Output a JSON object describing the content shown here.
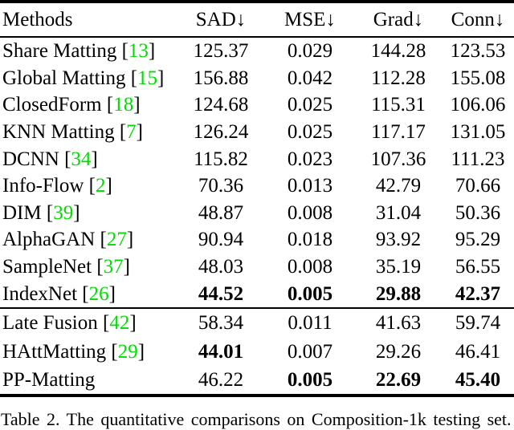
{
  "paper_table": {
    "headers": [
      "Methods",
      "SAD↓",
      "MSE↓",
      "Grad↓",
      "Conn↓"
    ],
    "groups": [
      {
        "rows": [
          {
            "method": "Share Matting",
            "cite": "13",
            "values": [
              "125.37",
              "0.029",
              "144.28",
              "123.53"
            ],
            "bold": [
              false,
              false,
              false,
              false
            ]
          },
          {
            "method": "Global Matting",
            "cite": "15",
            "values": [
              "156.88",
              "0.042",
              "112.28",
              "155.08"
            ],
            "bold": [
              false,
              false,
              false,
              false
            ]
          },
          {
            "method": "ClosedForm",
            "cite": "18",
            "values": [
              "124.68",
              "0.025",
              "115.31",
              "106.06"
            ],
            "bold": [
              false,
              false,
              false,
              false
            ]
          },
          {
            "method": "KNN Matting",
            "cite": "7",
            "values": [
              "126.24",
              "0.025",
              "117.17",
              "131.05"
            ],
            "bold": [
              false,
              false,
              false,
              false
            ]
          },
          {
            "method": "DCNN",
            "cite": "34",
            "values": [
              "115.82",
              "0.023",
              "107.36",
              "111.23"
            ],
            "bold": [
              false,
              false,
              false,
              false
            ]
          },
          {
            "method": "Info-Flow",
            "cite": "2",
            "values": [
              "70.36",
              "0.013",
              "42.79",
              "70.66"
            ],
            "bold": [
              false,
              false,
              false,
              false
            ]
          },
          {
            "method": "DIM",
            "cite": "39",
            "values": [
              "48.87",
              "0.008",
              "31.04",
              "50.36"
            ],
            "bold": [
              false,
              false,
              false,
              false
            ]
          },
          {
            "method": "AlphaGAN",
            "cite": "27",
            "values": [
              "90.94",
              "0.018",
              "93.92",
              "95.29"
            ],
            "bold": [
              false,
              false,
              false,
              false
            ]
          },
          {
            "method": "SampleNet",
            "cite": "37",
            "values": [
              "48.03",
              "0.008",
              "35.19",
              "56.55"
            ],
            "bold": [
              false,
              false,
              false,
              false
            ]
          },
          {
            "method": "IndexNet",
            "cite": "26",
            "values": [
              "44.52",
              "0.005",
              "29.88",
              "42.37"
            ],
            "bold": [
              true,
              true,
              true,
              true
            ]
          }
        ]
      },
      {
        "rows": [
          {
            "method": "Late Fusion",
            "cite": "42",
            "values": [
              "58.34",
              "0.011",
              "41.63",
              "59.74"
            ],
            "bold": [
              false,
              false,
              false,
              false
            ]
          },
          {
            "method": "HAttMatting",
            "cite": "29",
            "values": [
              "44.01",
              "0.007",
              "29.26",
              "46.41"
            ],
            "bold": [
              true,
              false,
              false,
              false
            ]
          },
          {
            "method": "PP-Matting",
            "cite": null,
            "values": [
              "46.22",
              "0.005",
              "22.69",
              "45.40"
            ],
            "bold": [
              false,
              true,
              true,
              true
            ]
          }
        ]
      }
    ]
  },
  "caption": "Table 2. The quantitative comparisons on Composition-1k testing set.",
  "colors": {
    "citation_green": "#00dd00",
    "text": "#000000",
    "background": "#ffffff"
  }
}
